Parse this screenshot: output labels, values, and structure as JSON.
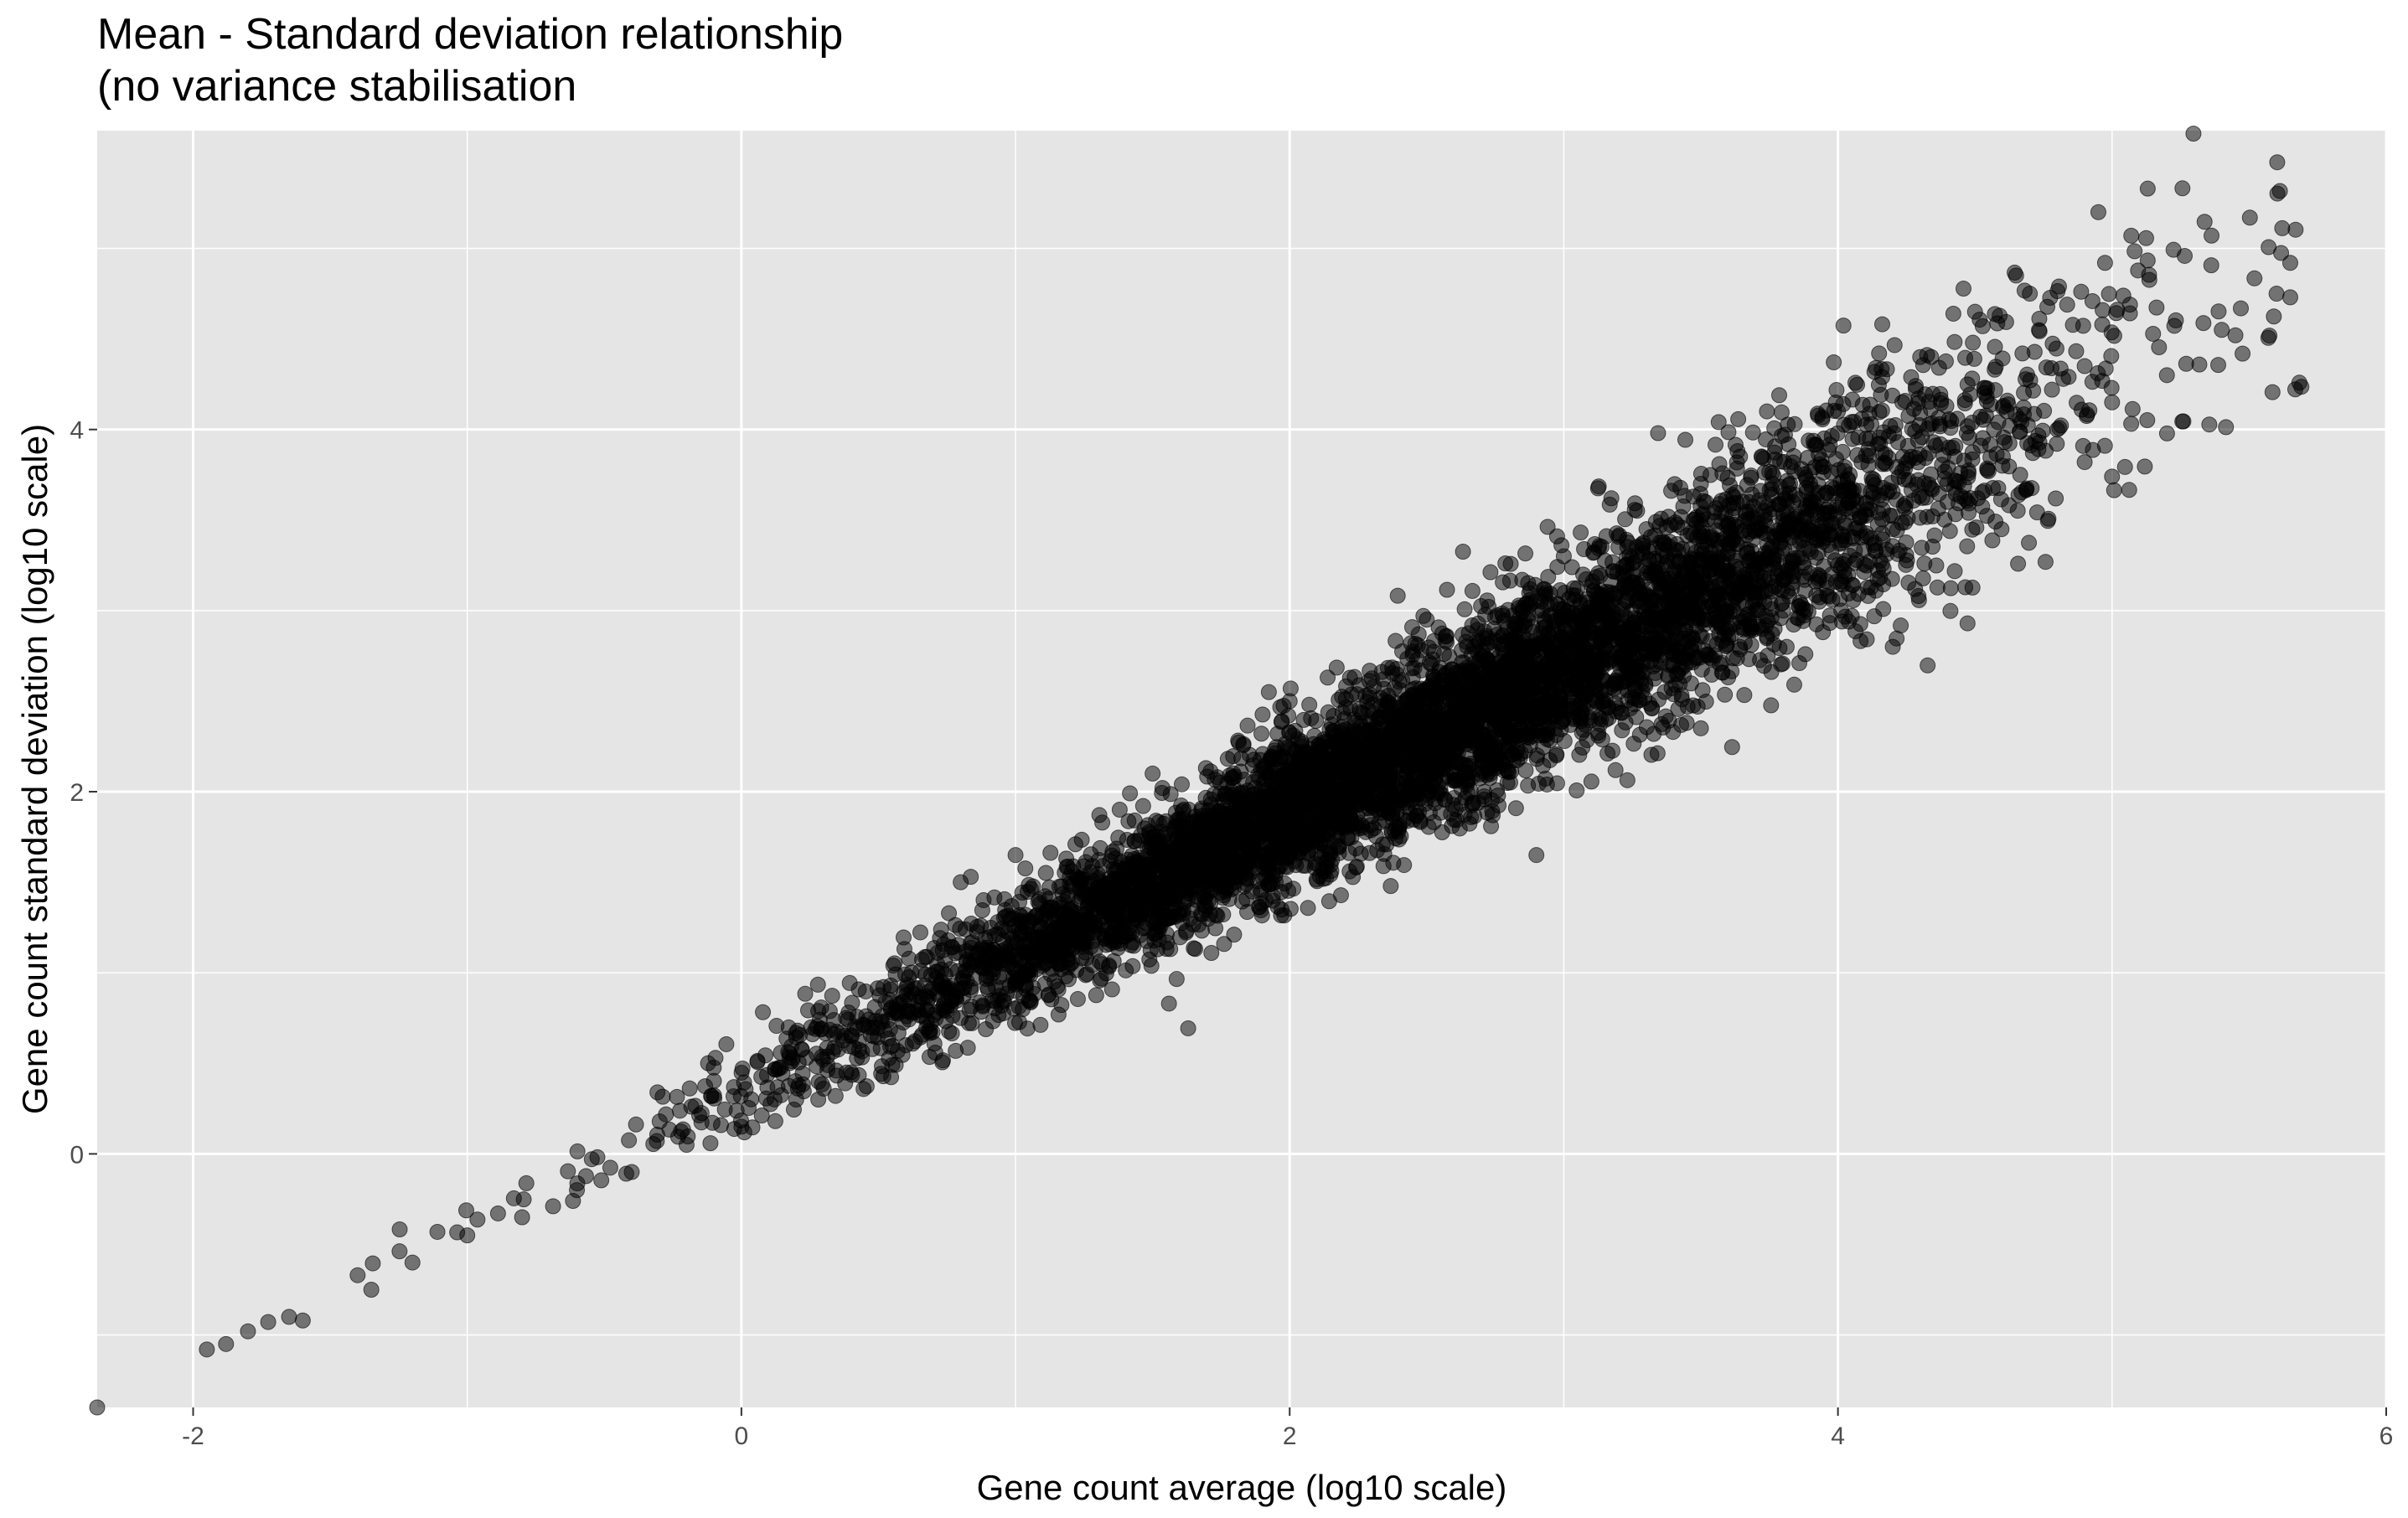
{
  "chart_data": {
    "type": "scatter",
    "title": "Mean - Standard deviation relationship",
    "subtitle": "(no variance stabilisation",
    "xlabel": "Gene count average (log10 scale)",
    "ylabel": "Gene count standard deviation (log10 scale)",
    "xlim": [
      -2.35,
      6.0
    ],
    "ylim": [
      -1.4,
      5.65
    ],
    "x_ticks": [
      -2,
      0,
      2,
      4,
      6
    ],
    "x_tick_labels": [
      "-2",
      "0",
      "2",
      "4",
      "6"
    ],
    "y_ticks": [
      0,
      2,
      4
    ],
    "y_tick_labels": [
      "0",
      "2",
      "4"
    ],
    "grid": true,
    "legend": "none",
    "point_color": "#000000",
    "point_alpha": 0.5,
    "panel_background": "#e5e5e5",
    "grid_color": "#ffffff",
    "relationship": "approximately linear: sd(log10) ≈ 0.3 + 0.75·mean(log10) for means above -1.5, with a tighter band near sd ≈ mean + 0.2 at low means",
    "points": [
      {
        "x": -2.35,
        "y": -1.4
      },
      {
        "x": -1.95,
        "y": -1.08
      },
      {
        "x": -1.88,
        "y": -1.05
      },
      {
        "x": -1.8,
        "y": -0.98
      },
      {
        "x": -1.65,
        "y": -0.9
      },
      {
        "x": -1.4,
        "y": -0.67
      },
      {
        "x": -1.6,
        "y": -0.92
      },
      {
        "x": -1.35,
        "y": -0.75
      },
      {
        "x": -1.2,
        "y": -0.6
      },
      {
        "x": -1.0,
        "y": -0.45
      },
      {
        "x": -0.8,
        "y": -0.35
      },
      {
        "x": -0.6,
        "y": -0.2
      },
      {
        "x": -0.4,
        "y": -0.1
      },
      {
        "x": -0.2,
        "y": 0.05
      },
      {
        "x": 0.0,
        "y": 0.15
      },
      {
        "x": 0.2,
        "y": 0.3
      },
      {
        "x": 0.4,
        "y": 0.45
      },
      {
        "x": 0.6,
        "y": 0.6
      },
      {
        "x": 0.8,
        "y": 0.75
      },
      {
        "x": 1.0,
        "y": 0.9
      },
      {
        "x": 1.2,
        "y": 1.05
      },
      {
        "x": 1.4,
        "y": 1.2
      },
      {
        "x": 1.6,
        "y": 1.35
      },
      {
        "x": 1.8,
        "y": 1.5
      },
      {
        "x": 2.0,
        "y": 1.65
      },
      {
        "x": 2.2,
        "y": 1.8
      },
      {
        "x": 2.4,
        "y": 1.95
      },
      {
        "x": 2.6,
        "y": 2.1
      },
      {
        "x": 2.8,
        "y": 2.25
      },
      {
        "x": 3.0,
        "y": 2.4
      },
      {
        "x": 3.2,
        "y": 2.55
      },
      {
        "x": 3.4,
        "y": 2.7
      },
      {
        "x": 3.6,
        "y": 2.85
      },
      {
        "x": 3.8,
        "y": 3.0
      },
      {
        "x": 4.0,
        "y": 3.25
      },
      {
        "x": 4.2,
        "y": 3.45
      },
      {
        "x": 4.4,
        "y": 3.6
      },
      {
        "x": 4.6,
        "y": 3.8
      },
      {
        "x": 4.8,
        "y": 4.0
      },
      {
        "x": 5.0,
        "y": 4.15
      },
      {
        "x": 5.2,
        "y": 4.3
      },
      {
        "x": 5.4,
        "y": 4.55
      },
      {
        "x": 5.6,
        "y": 4.75
      },
      {
        "x": 0.8,
        "y": 1.5
      },
      {
        "x": 1.0,
        "y": 1.65
      },
      {
        "x": 1.5,
        "y": 2.1
      },
      {
        "x": 2.0,
        "y": 2.5
      },
      {
        "x": 2.5,
        "y": 2.95
      },
      {
        "x": 3.0,
        "y": 3.3
      },
      {
        "x": 3.5,
        "y": 3.7
      },
      {
        "x": 4.0,
        "y": 4.1
      },
      {
        "x": 4.15,
        "y": 4.42
      },
      {
        "x": 4.3,
        "y": 4.4
      },
      {
        "x": 4.5,
        "y": 4.65
      },
      {
        "x": 4.65,
        "y": 4.85
      },
      {
        "x": 4.7,
        "y": 4.75
      },
      {
        "x": 4.9,
        "y": 4.35
      },
      {
        "x": 4.95,
        "y": 5.2
      },
      {
        "x": 5.07,
        "y": 5.07
      },
      {
        "x": 5.13,
        "y": 5.33
      },
      {
        "x": 5.65,
        "y": 4.92
      },
      {
        "x": 5.65,
        "y": 4.73
      },
      {
        "x": 5.45,
        "y": 4.52
      },
      {
        "x": 3.5,
        "y": 2.35
      },
      {
        "x": 4.2,
        "y": 2.8
      },
      {
        "x": 4.9,
        "y": 3.82
      },
      {
        "x": 2.9,
        "y": 1.65
      }
    ]
  }
}
